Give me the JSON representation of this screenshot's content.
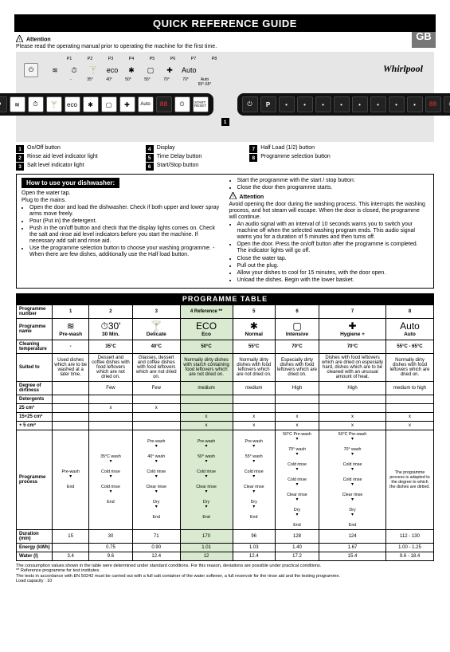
{
  "header": {
    "title": "QUICK REFERENCE GUIDE",
    "language_badge": "GB"
  },
  "attention_top": {
    "label": "Attention",
    "text": "Please read the operating manual prior to operating the machine for the first time."
  },
  "panel": {
    "prog_labels": [
      "P1",
      "P2",
      "P3",
      "P4",
      "P5",
      "P6",
      "P7",
      "P8"
    ],
    "prog_temps": [
      "-",
      "35°",
      "40°",
      "50°",
      "55°",
      "70°",
      "70°",
      "Auto 55°-65°"
    ],
    "brand": "Whirlpool",
    "auto_label": "Auto",
    "dark_right_labels": [
      "START",
      "RESET"
    ]
  },
  "button_legend": [
    {
      "n": "1",
      "label": "On/Off button"
    },
    {
      "n": "2",
      "label": "Rinse aid level indicator light"
    },
    {
      "n": "3",
      "label": "Salt level indicator light"
    },
    {
      "n": "4",
      "label": "Display"
    },
    {
      "n": "5",
      "label": "Time Delay button"
    },
    {
      "n": "6",
      "label": "Start/Stop button"
    },
    {
      "n": "7",
      "label": "Half Load (1/2) button"
    },
    {
      "n": "8",
      "label": "Programme selection button"
    }
  ],
  "howto": {
    "title": "How to use your dishwasher:",
    "left_lines": [
      "Open the water tap.",
      "Plug to the mains."
    ],
    "left_bullets": [
      "Open the door and load the dishwasher. Check if both upper and lower spray arms move freely.",
      "Pour (Put in) the detergent.",
      "Push in the on/off button and check that the display lights comes on. Check the salt and rinse aid level indicators before you start the machine. If necessary add salt and rinse aid.",
      "Use the programme selection button to choose your washing programme. - When there are few dishes, additionally use the Half load button."
    ],
    "right_top_bullets": [
      "Start the programme with the start / stop button:",
      "Close the door then programme starts."
    ],
    "right_attention_label": "Attention",
    "right_attention_text": "Avoid opening the door during the washing process. This interrupts the washing process, and hot steam will escape. When the door is closed, the programme will continue.",
    "right_bullets": [
      "An audio signal with an interval of 10 seconds warns you to switch your machine off when the selected washing program ends. This audio signal warns you for a duration of 5 minutes and then turns off.",
      "Open the door. Press the on/off button after the programme is completed. The indicator lights will go off.",
      "Close the water tap.",
      "Pull out the plug.",
      "Allow your dishes to cool for 15 minutes, with the door open.",
      "Unload the dishes. Begin with the lower basket."
    ]
  },
  "table_header_bar": "PROGRAMME TABLE",
  "table": {
    "row_labels": {
      "number": "Programme number",
      "name": "Programme name",
      "temp": "Cleaning temperature",
      "suited": "Suited to",
      "dirtiness": "Degree of dirtiness",
      "detergents": "Detergents",
      "d25": "25 cm³",
      "d1525": "15+25 cm³",
      "d5": "+ 5 cm³",
      "process": "Programme process",
      "duration": "Duration (min)",
      "energy": "Energy (kWh)",
      "water": "Water (l)"
    },
    "columns": [
      {
        "num": "1",
        "icon": "≋",
        "name": "Pre-wash",
        "temp": "-",
        "suited": "Used dishes which are to be washed at a later time.",
        "dirt": "",
        "d25": "",
        "d1525": "",
        "d5": "",
        "process": "Pre-wash\n▾\nEnd",
        "duration": "15",
        "energy": "",
        "water": "3.4"
      },
      {
        "num": "2",
        "icon": "⏱30'",
        "name": "30 Min.",
        "temp": "35°C",
        "suited": "Dessert and coffee dishes with food leftovers which are not dried on.",
        "dirt": "Few",
        "d25": "x",
        "d1525": "",
        "d5": "",
        "process": "35°C wash\n▾\nCold rinse\n▾\nCold rinse\n▾\nEnd",
        "duration": "30",
        "energy": "0.75",
        "water": "9.6"
      },
      {
        "num": "3",
        "icon": "🍸",
        "name": "Delicate",
        "temp": "40°C",
        "suited": "Glasses, dessert and coffee dishes with food leftovers which are not dried on.",
        "dirt": "Few",
        "d25": "x",
        "d1525": "",
        "d5": "",
        "process": "Pre-wash\n▾\n40° wash\n▾\nCold rinse\n▾\nClear rinse\n▾\nDry\n▾\nEnd",
        "duration": "71",
        "energy": "0.90",
        "water": "12.4"
      },
      {
        "num": "4",
        "icon": "ECO",
        "name": "Eco",
        "temp": "50°C",
        "suited": "Normally dirty dishes with starch containing food leftovers which are not dried on.",
        "dirt": "medium",
        "d25": "",
        "d1525": "x",
        "d5": "x",
        "process": "Pre-wash\n▾\n50° wash\n▾\nCold rinse\n▾\nClear rinse\n▾\nDry\n▾\nEnd",
        "duration": "170",
        "energy": "1.01",
        "water": "12",
        "eco": true,
        "header_extra": "4 Reference **"
      },
      {
        "num": "5",
        "icon": "✱",
        "name": "Normal",
        "temp": "55°C",
        "suited": "Normally dirty dishes with food leftovers which are not dried on.",
        "dirt": "medium",
        "d25": "",
        "d1525": "x",
        "d5": "x",
        "process": "Pre-wash\n▾\n55° wash\n▾\nCold rinse\n▾\nClear rinse\n▾\nDry\n▾\nEnd",
        "duration": "96",
        "energy": "1.03",
        "water": "12.4"
      },
      {
        "num": "6",
        "icon": "▢",
        "name": "Intensive",
        "temp": "70°C",
        "suited": "Especially dirty dishes with food leftovers which are dried on.",
        "dirt": "High",
        "d25": "",
        "d1525": "x",
        "d5": "x",
        "process": "50°C Pre-wash\n▾\n70° wash\n▾\nCold rinse\n▾\nCold rinse\n▾\nClear rinse\n▾\nDry\n▾\nEnd",
        "duration": "128",
        "energy": "1.40",
        "water": "17.2"
      },
      {
        "num": "7",
        "icon": "✚",
        "name": "Hygiene +",
        "temp": "70°C",
        "suited": "Dishes with food leftovers which are dried on especially hard, dishes which are to be cleaned with an unusual amount of heat.",
        "dirt": "High",
        "d25": "",
        "d1525": "x",
        "d5": "x",
        "process": "50°C Pre-wash\n▾\n70° wash\n▾\nCold rinse\n▾\nCold rinse\n▾\nClear rinse\n▾\nDry\n▾\nEnd",
        "duration": "124",
        "energy": "1.67",
        "water": "15.4"
      },
      {
        "num": "8",
        "icon": "Auto",
        "name": "Auto",
        "temp": "55°C - 65°C",
        "suited": "Normally dirty dishes with food leftovers which are dried on.",
        "dirt": "medium to high",
        "d25": "",
        "d1525": "x",
        "d5": "x",
        "process": "The programme process is adapted to the degree to which the dishes are dirtied.",
        "duration": "112 - 130",
        "energy": "1.00 - 1.25",
        "water": "9.6 - 18.4"
      }
    ]
  },
  "footnotes": [
    "The consumption values shown in the table were determined under standard conditions. For this reason, deviations are possible under practical conditions.",
    "** Reference programme for test institutes.",
    "The tests in accordance with EN 50242 must be carried out with a full salt container of the water softener, a full reservoir for the rinse aid and the testing programme.",
    "Load capacity : 10"
  ]
}
